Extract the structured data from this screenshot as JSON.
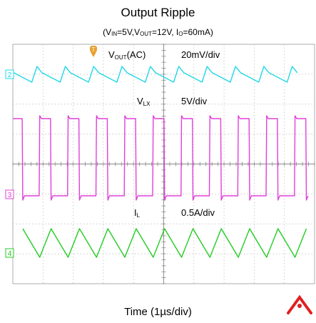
{
  "chart_data": {
    "type": "line",
    "title": "Output Ripple",
    "subtitle": {
      "open": "(V",
      "vin_sub": "IN",
      "vin_val": "=5V,V",
      "vout_sub": "OUT",
      "vout_val": "=12V, I",
      "io_sub": "O",
      "io_val": "=60mA)"
    },
    "xlabel": "Time (1µs/div)",
    "grid": true,
    "x_divisions": 10,
    "y_divisions": 8,
    "channels": [
      {
        "marker": "2",
        "label": "VOUT(AC)",
        "label_main": "V",
        "label_sub": "OUT",
        "label_rest": "(AC)",
        "scale": "20mV/div",
        "color": "#22d8e6",
        "waveform": "sawtooth ripple"
      },
      {
        "marker": "3",
        "label": "VLX",
        "label_main": "V",
        "label_sub": "LX",
        "label_rest": "",
        "scale": "5V/div",
        "color": "#e040d8",
        "waveform": "switching square wave"
      },
      {
        "marker": "4",
        "label": "IL",
        "label_main": "I",
        "label_sub": "L",
        "label_rest": "",
        "scale": "0.5A/div",
        "color": "#22cc22",
        "waveform": "triangle"
      }
    ],
    "switching_period_us": 0.94,
    "cycles_shown": 10.5
  },
  "colors": {
    "grid_bg": "#ffffff",
    "grid_line": "#b8b8b8",
    "trigger_marker": "#e8a030",
    "watermark": "#e02020"
  },
  "icons": [
    "trigger-marker-icon",
    "watermark-icon"
  ]
}
